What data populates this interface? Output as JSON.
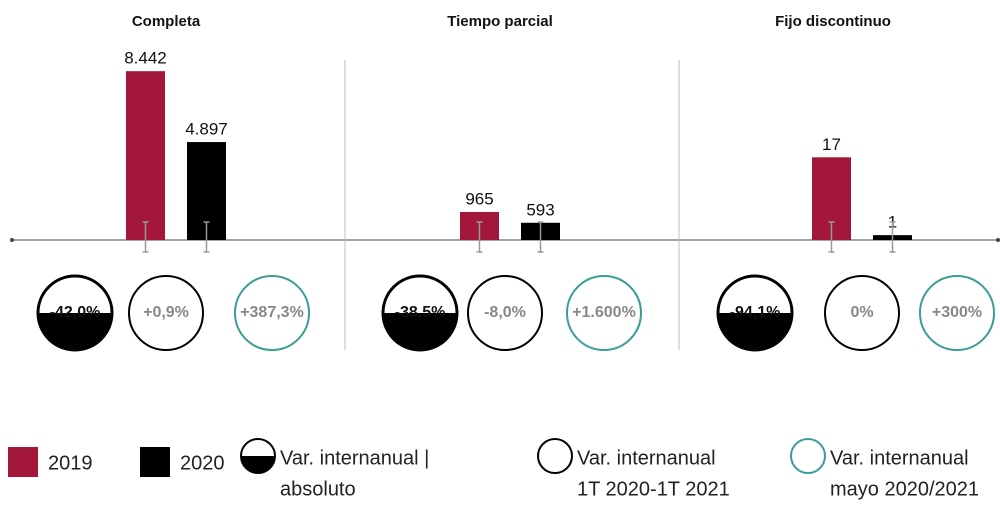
{
  "chart_data": [
    {
      "type": "bar",
      "title": "Completa",
      "ylim": [
        0,
        9000
      ],
      "series": [
        {
          "name": "2019",
          "color": "#a3183a",
          "values": [
            8442
          ],
          "value_labels": [
            "8.442"
          ]
        },
        {
          "name": "2020",
          "color": "#000000",
          "values": [
            4897
          ],
          "value_labels": [
            "4.897"
          ]
        }
      ],
      "variations": [
        {
          "value": -42.0,
          "label": "-42,0%"
        },
        {
          "value": 0.9,
          "label": "+0,9%"
        },
        {
          "value": 387.3,
          "label": "+387,3%"
        }
      ]
    },
    {
      "type": "bar",
      "title": "Tiempo parcial",
      "ylim": [
        0,
        6200
      ],
      "series": [
        {
          "name": "2019",
          "color": "#a3183a",
          "values": [
            965
          ],
          "value_labels": [
            "965"
          ]
        },
        {
          "name": "2020",
          "color": "#000000",
          "values": [
            593
          ],
          "value_labels": [
            "593"
          ]
        }
      ],
      "variations": [
        {
          "value": -38.5,
          "label": "-38,5%"
        },
        {
          "value": -8.0,
          "label": "-8,0%"
        },
        {
          "value": 1600,
          "label": "+1.600%"
        }
      ]
    },
    {
      "type": "bar",
      "title": "Fijo discontinuo",
      "ylim": [
        0,
        37
      ],
      "series": [
        {
          "name": "2019",
          "color": "#a3183a",
          "values": [
            17
          ],
          "value_labels": [
            "17"
          ]
        },
        {
          "name": "2020",
          "color": "#000000",
          "values": [
            1
          ],
          "value_labels": [
            "1"
          ]
        }
      ],
      "variations": [
        {
          "value": -94.1,
          "label": "-94,1%"
        },
        {
          "value": 0,
          "label": "0%"
        },
        {
          "value": 300,
          "label": "+300%"
        }
      ]
    }
  ],
  "circle_legend": [
    {
      "style": "half",
      "color": "#000000",
      "lines": [
        "Var. internanual |",
        "absoluto"
      ]
    },
    {
      "style": "outline",
      "color": "#000000",
      "lines": [
        "Var. internanual",
        "1T 2020-1T 2021"
      ]
    },
    {
      "style": "outline",
      "color": "#3a9e94",
      "lines": [
        "Var. internanual",
        "mayo 2020/2021"
      ]
    }
  ]
}
